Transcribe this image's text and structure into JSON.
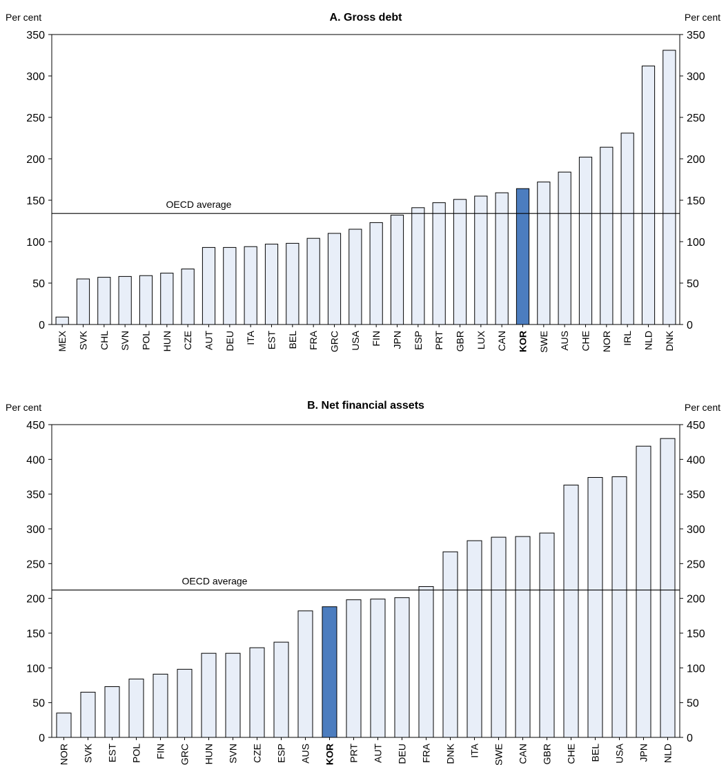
{
  "chart_data": [
    {
      "type": "bar",
      "title": "A. Gross debt",
      "ylabel_left": "Per cent",
      "ylabel_right": "Per cent",
      "ylim": [
        0,
        350
      ],
      "yticks": [
        0,
        50,
        100,
        150,
        200,
        250,
        300,
        350
      ],
      "categories": [
        "MEX",
        "SVK",
        "CHL",
        "SVN",
        "POL",
        "HUN",
        "CZE",
        "AUT",
        "DEU",
        "ITA",
        "EST",
        "BEL",
        "FRA",
        "GRC",
        "USA",
        "FIN",
        "JPN",
        "ESP",
        "PRT",
        "GBR",
        "LUX",
        "CAN",
        "KOR",
        "SWE",
        "AUS",
        "CHE",
        "NOR",
        "IRL",
        "NLD",
        "DNK"
      ],
      "values": [
        9,
        55,
        57,
        58,
        59,
        62,
        67,
        93,
        93,
        94,
        97,
        98,
        104,
        110,
        115,
        123,
        132,
        141,
        147,
        151,
        155,
        159,
        164,
        172,
        184,
        202,
        214,
        231,
        312,
        331
      ],
      "highlight": "KOR",
      "reference_line": {
        "label": "OECD average",
        "value": 134
      },
      "colors": {
        "bar": "#e8eef8",
        "highlight": "#4c7dbf",
        "stroke": "#000000"
      },
      "grid": false
    },
    {
      "type": "bar",
      "title": "B. Net financial assets",
      "ylabel_left": "Per cent",
      "ylabel_right": "Per cent",
      "ylim": [
        0,
        450
      ],
      "yticks": [
        0,
        50,
        100,
        150,
        200,
        250,
        300,
        350,
        400,
        450
      ],
      "categories": [
        "NOR",
        "SVK",
        "EST",
        "POL",
        "FIN",
        "GRC",
        "HUN",
        "SVN",
        "CZE",
        "ESP",
        "AUS",
        "KOR",
        "PRT",
        "AUT",
        "DEU",
        "FRA",
        "DNK",
        "ITA",
        "SWE",
        "CAN",
        "GBR",
        "CHE",
        "BEL",
        "USA",
        "JPN",
        "NLD"
      ],
      "values": [
        35,
        65,
        73,
        84,
        91,
        98,
        121,
        121,
        129,
        137,
        182,
        188,
        198,
        199,
        201,
        217,
        267,
        283,
        288,
        289,
        294,
        363,
        374,
        375,
        419,
        430
      ],
      "highlight": "KOR",
      "reference_line": {
        "label": "OECD average",
        "value": 212
      },
      "colors": {
        "bar": "#e8eef8",
        "highlight": "#4c7dbf",
        "stroke": "#000000"
      },
      "grid": false
    }
  ]
}
